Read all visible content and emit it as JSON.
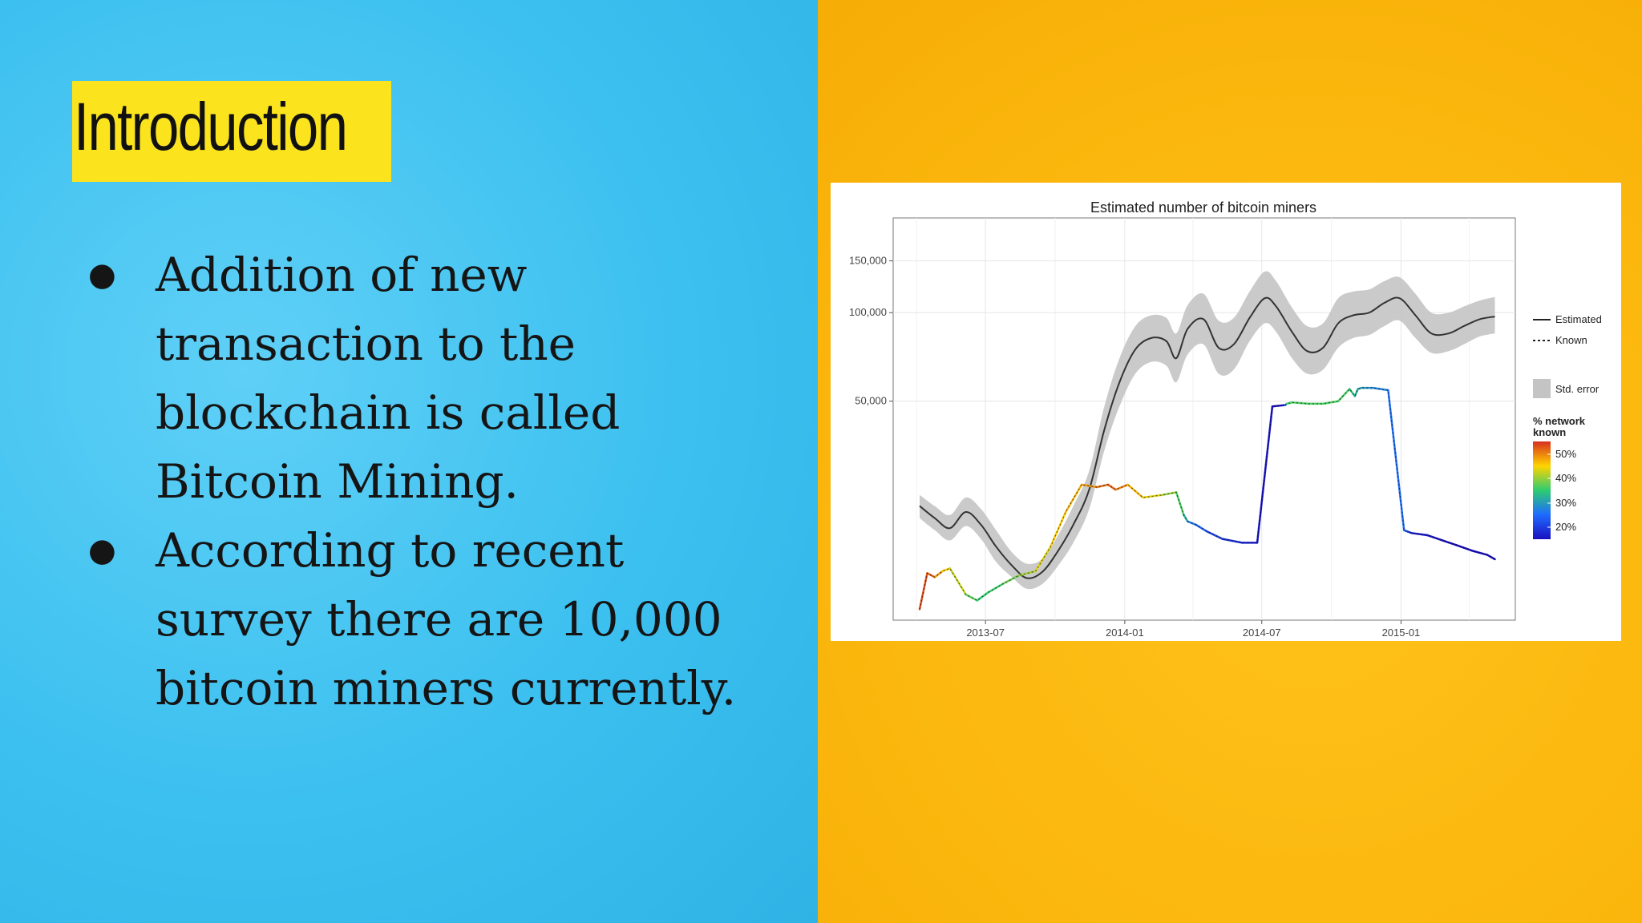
{
  "slide": {
    "title": "Introduction",
    "bullets": [
      "Addition of new transaction to the blockchain is called Bitcoin Mining.",
      "According to recent survey there are 10,000 bitcoin miners currently."
    ],
    "colors": {
      "left_bg": "#3cc0ef",
      "right_bg": "#fbb70d",
      "title_highlight": "#fbe31e"
    }
  },
  "chart_data": {
    "type": "line",
    "title": "Estimated number of bitcoin miners",
    "xlabel": "",
    "ylabel": "",
    "y_scale": "log",
    "ylim": [
      9000,
      210000
    ],
    "xlim": [
      "2013-03-01",
      "2015-06-01"
    ],
    "x_ticks": [
      "2013-07",
      "2014-01",
      "2014-07",
      "2015-01"
    ],
    "y_ticks": [
      {
        "value": 50000,
        "label": "50,000"
      },
      {
        "value": 100000,
        "label": "100,000"
      },
      {
        "value": 150000,
        "label": "150,000"
      }
    ],
    "grid": true,
    "legend_position": "right",
    "legend": {
      "lines": [
        "Estimated",
        "Known"
      ],
      "band_label": "Std. error",
      "colorbar_title": "% network known",
      "colorbar_ticks": [
        "50%",
        "40%",
        "30%",
        "20%"
      ]
    },
    "series": [
      {
        "name": "Estimated",
        "x": [
          "2013-04-05",
          "2013-04-25",
          "2013-05-15",
          "2013-06-05",
          "2013-06-25",
          "2013-07-15",
          "2013-08-05",
          "2013-08-25",
          "2013-09-15",
          "2013-10-05",
          "2013-10-25",
          "2013-11-15",
          "2013-12-05",
          "2013-12-25",
          "2014-01-15",
          "2014-02-05",
          "2014-02-25",
          "2014-03-10",
          "2014-03-25",
          "2014-04-15",
          "2014-05-05",
          "2014-05-25",
          "2014-06-15",
          "2014-07-05",
          "2014-07-20",
          "2014-08-10",
          "2014-08-30",
          "2014-09-20",
          "2014-10-10",
          "2014-10-30",
          "2014-11-20",
          "2014-12-10",
          "2014-12-30",
          "2015-01-20",
          "2015-02-10",
          "2015-03-05",
          "2015-03-25",
          "2015-04-15",
          "2015-05-05"
        ],
        "values": [
          22000,
          20000,
          18500,
          21000,
          19000,
          16000,
          13800,
          12500,
          13200,
          15500,
          19000,
          25000,
          40000,
          58000,
          75000,
          82000,
          80000,
          70000,
          88000,
          95000,
          76000,
          78000,
          96000,
          112000,
          105000,
          86000,
          74000,
          76000,
          92000,
          98000,
          100000,
          108000,
          112000,
          98000,
          85000,
          85000,
          90000,
          95000,
          97000
        ]
      },
      {
        "name": "Std. error lower",
        "x": [
          "2013-04-05",
          "2013-04-25",
          "2013-05-15",
          "2013-06-05",
          "2013-06-25",
          "2013-07-15",
          "2013-08-05",
          "2013-08-25",
          "2013-09-15",
          "2013-10-05",
          "2013-10-25",
          "2013-11-15",
          "2013-12-05",
          "2013-12-25",
          "2014-01-15",
          "2014-02-05",
          "2014-02-25",
          "2014-03-10",
          "2014-03-25",
          "2014-04-15",
          "2014-05-05",
          "2014-05-25",
          "2014-06-15",
          "2014-07-05",
          "2014-07-20",
          "2014-08-10",
          "2014-08-30",
          "2014-09-20",
          "2014-10-10",
          "2014-10-30",
          "2014-11-20",
          "2014-12-10",
          "2014-12-30",
          "2015-01-20",
          "2015-02-10",
          "2015-03-05",
          "2015-03-25",
          "2015-04-15",
          "2015-05-05"
        ],
        "values": [
          20000,
          18200,
          16800,
          18800,
          17000,
          14200,
          12600,
          11500,
          12000,
          13800,
          16500,
          21500,
          34000,
          48000,
          62000,
          68000,
          66000,
          58000,
          72000,
          78000,
          62000,
          64000,
          80000,
          92000,
          86000,
          70000,
          62000,
          64000,
          76000,
          82000,
          84000,
          90000,
          94000,
          82000,
          73000,
          74000,
          78000,
          83000,
          85000
        ]
      },
      {
        "name": "Std. error upper",
        "x": [
          "2013-04-05",
          "2013-04-25",
          "2013-05-15",
          "2013-06-05",
          "2013-06-25",
          "2013-07-15",
          "2013-08-05",
          "2013-08-25",
          "2013-09-15",
          "2013-10-05",
          "2013-10-25",
          "2013-11-15",
          "2013-12-05",
          "2013-12-25",
          "2014-01-15",
          "2014-02-05",
          "2014-02-25",
          "2014-03-10",
          "2014-03-25",
          "2014-04-15",
          "2014-05-05",
          "2014-05-25",
          "2014-06-15",
          "2014-07-05",
          "2014-07-20",
          "2014-08-10",
          "2014-08-30",
          "2014-09-20",
          "2014-10-10",
          "2014-10-30",
          "2014-11-20",
          "2014-12-10",
          "2014-12-30",
          "2015-01-20",
          "2015-02-10",
          "2015-03-05",
          "2015-03-25",
          "2015-04-15",
          "2015-05-05"
        ],
        "values": [
          24000,
          22000,
          20500,
          23500,
          21500,
          18200,
          15300,
          14000,
          14600,
          17500,
          22000,
          29000,
          48000,
          70000,
          90000,
          98000,
          96000,
          85000,
          106000,
          116000,
          94000,
          96000,
          118000,
          138000,
          128000,
          104000,
          90000,
          92000,
          112000,
          118000,
          120000,
          128000,
          132000,
          116000,
          100000,
          100000,
          105000,
          110000,
          113000
        ]
      },
      {
        "name": "Known",
        "x": [
          "2013-04-05",
          "2013-04-15",
          "2013-04-25",
          "2013-05-05",
          "2013-05-15",
          "2013-06-05",
          "2013-06-20",
          "2013-07-05",
          "2013-07-25",
          "2013-08-15",
          "2013-09-05",
          "2013-09-25",
          "2013-10-15",
          "2013-11-05",
          "2013-11-25",
          "2013-12-10",
          "2013-12-20",
          "2014-01-05",
          "2014-01-25",
          "2014-02-20",
          "2014-03-10",
          "2014-03-20",
          "2014-03-25",
          "2014-04-05",
          "2014-04-20",
          "2014-05-10",
          "2014-06-05",
          "2014-06-25",
          "2014-07-15",
          "2014-08-01",
          "2014-08-03",
          "2014-08-10",
          "2014-09-01",
          "2014-09-20",
          "2014-10-10",
          "2014-10-25",
          "2014-11-01",
          "2014-11-05",
          "2014-11-10",
          "2014-11-25",
          "2014-12-15",
          "2015-01-05",
          "2015-01-10",
          "2015-01-15",
          "2015-02-05",
          "2015-02-25",
          "2015-03-15",
          "2015-04-05",
          "2015-04-25",
          "2015-05-05"
        ],
        "known_pct": [
          48,
          49,
          46,
          44,
          42,
          38,
          35,
          35,
          36,
          38,
          40,
          42,
          43,
          44,
          46,
          48,
          47,
          45,
          42,
          40,
          37,
          35,
          30,
          27,
          25,
          23,
          22,
          21,
          20,
          20,
          35,
          36,
          36,
          36,
          36,
          36,
          33,
          32,
          31,
          30,
          28,
          27,
          25,
          21,
          21,
          20,
          19,
          19,
          18,
          18
        ],
        "values": [
          9800,
          13000,
          12600,
          13200,
          13500,
          11000,
          10500,
          11200,
          12000,
          12800,
          13200,
          16000,
          21000,
          26000,
          25500,
          26000,
          25000,
          26000,
          23500,
          24000,
          24500,
          20500,
          19500,
          19000,
          18000,
          17000,
          16500,
          16500,
          48000,
          48500,
          49000,
          49500,
          49000,
          49000,
          50000,
          55000,
          52000,
          55000,
          55500,
          55500,
          54500,
          18200,
          18000,
          17800,
          17500,
          16800,
          16200,
          15500,
          15000,
          14500
        ]
      }
    ]
  }
}
